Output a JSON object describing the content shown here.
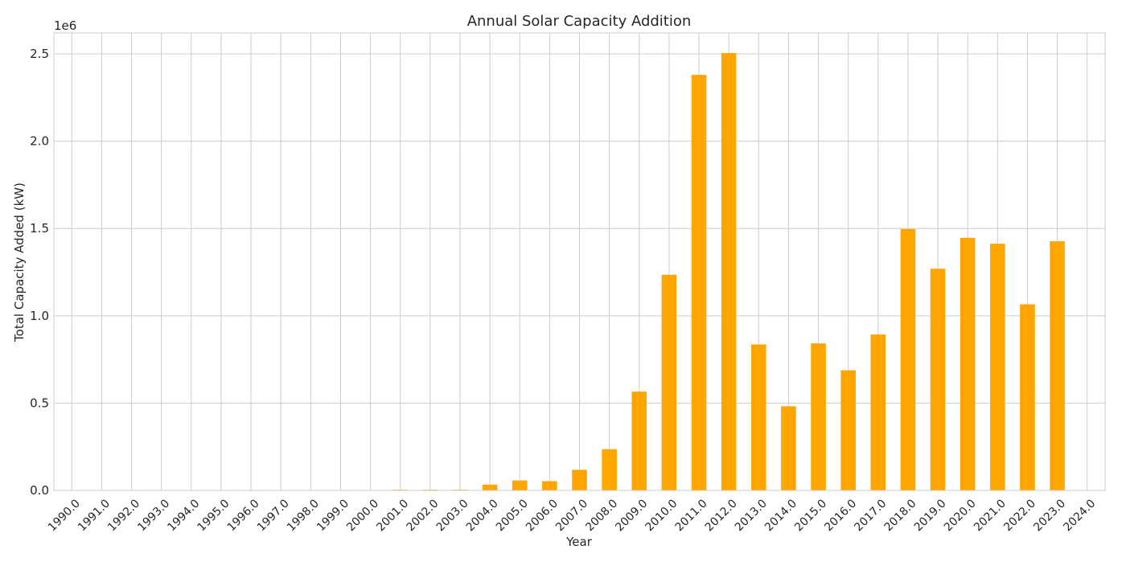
{
  "chart_data": {
    "type": "bar",
    "title": "Annual Solar Capacity Addition",
    "xlabel": "Year",
    "ylabel": "Total Capacity Added (kW)",
    "offset_label": "1e6",
    "ylim": [
      0,
      2620000
    ],
    "y_ticks": [
      "0.0",
      "0.5",
      "1.0",
      "1.5",
      "2.0",
      "2.5"
    ],
    "y_tick_values": [
      0,
      500000,
      1000000,
      1500000,
      2000000,
      2500000
    ],
    "grid": true,
    "bar_color": "#FFA500",
    "grid_color": "#CCCCCC",
    "categories": [
      "1990.0",
      "1991.0",
      "1992.0",
      "1993.0",
      "1994.0",
      "1995.0",
      "1996.0",
      "1997.0",
      "1998.0",
      "1999.0",
      "2000.0",
      "2001.0",
      "2002.0",
      "2003.0",
      "2004.0",
      "2005.0",
      "2006.0",
      "2007.0",
      "2008.0",
      "2009.0",
      "2010.0",
      "2011.0",
      "2012.0",
      "2013.0",
      "2014.0",
      "2015.0",
      "2016.0",
      "2017.0",
      "2018.0",
      "2019.0",
      "2020.0",
      "2021.0",
      "2022.0",
      "2023.0",
      "2024.0"
    ],
    "values": [
      0,
      0,
      0,
      0,
      0,
      0,
      0,
      0,
      0,
      0,
      0,
      4000,
      4000,
      4000,
      33000,
      57000,
      53000,
      118000,
      236000,
      566000,
      1235000,
      2380000,
      2505000,
      836000,
      482000,
      842000,
      688000,
      893000,
      1497000,
      1270000,
      1447000,
      1413000,
      1066000,
      1427000,
      0
    ]
  }
}
